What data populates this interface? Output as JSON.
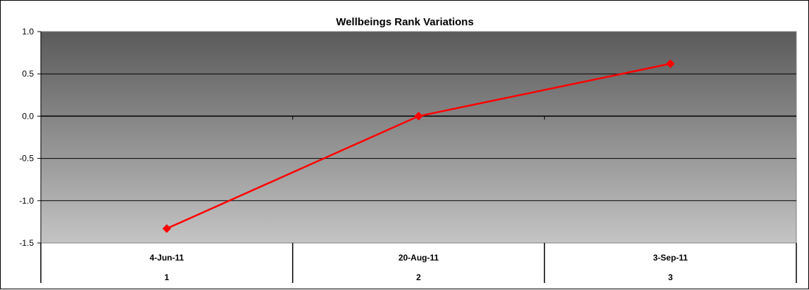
{
  "chart_data": {
    "type": "line",
    "title": "Wellbeings Rank Variations",
    "xlabel": "",
    "ylabel": "",
    "categories": [
      "4-Jun-11",
      "20-Aug-11",
      "3-Sep-11"
    ],
    "category_indices": [
      "1",
      "2",
      "3"
    ],
    "ylim": [
      -1.5,
      1.0
    ],
    "yticks": [
      "1.0",
      "0.5",
      "0.0",
      "-0.5",
      "-1.0",
      "-1.5"
    ],
    "ytick_values": [
      1.0,
      0.5,
      0.0,
      -0.5,
      -1.0,
      -1.5
    ],
    "series": [
      {
        "values": [
          -1.33,
          0.0,
          0.62
        ],
        "color": "#ff0000",
        "marker": "diamond"
      }
    ],
    "grid": true,
    "legend": "none",
    "plot_background": "gradient dark-gray to light-gray"
  }
}
